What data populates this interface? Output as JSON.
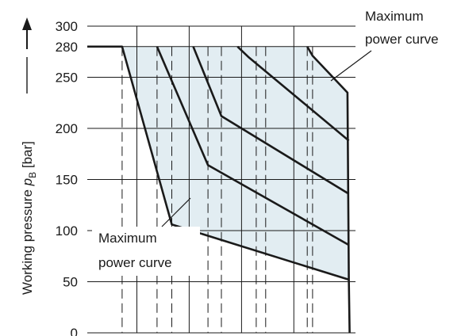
{
  "chart_data": {
    "type": "line",
    "ylabel_main": "Working pressure ",
    "ylabel_symbol": "p",
    "ylabel_subscript": "B",
    "ylabel_unit": " [bar]",
    "ylim": [
      0,
      300
    ],
    "yticks": [
      0,
      50,
      100,
      150,
      200,
      250,
      280,
      300
    ],
    "grid": true,
    "fill_color": "#e2edf2",
    "x_units_note": "x axis has no printed ticks; x values in flow-fraction units 0-10",
    "xlim": [
      0,
      10
    ],
    "vertical_grid_x": [
      1.85,
      3.8,
      5.75,
      7.7
    ],
    "dashed_x": [
      1.3,
      2.6,
      3.15,
      4.5,
      5.0,
      6.3,
      6.65,
      8.2,
      8.4
    ],
    "series": [
      {
        "points": [
          [
            0,
            280
          ],
          [
            1.3,
            280
          ],
          [
            3.15,
            106
          ],
          [
            9.75,
            52
          ]
        ]
      },
      {
        "points": [
          [
            2.6,
            280
          ],
          [
            4.5,
            164
          ],
          [
            9.75,
            86
          ]
        ]
      },
      {
        "points": [
          [
            3.95,
            280
          ],
          [
            5.0,
            212
          ],
          [
            9.75,
            136
          ]
        ]
      },
      {
        "points": [
          [
            5.6,
            280
          ],
          [
            6.0,
            270
          ],
          [
            9.75,
            188
          ]
        ]
      },
      {
        "points": [
          [
            8.2,
            280
          ],
          [
            8.4,
            271
          ],
          [
            9.7,
            235
          ],
          [
            9.75,
            52
          ],
          [
            9.78,
            0
          ]
        ]
      }
    ],
    "annotations": [
      {
        "lines": [
          "Maximum",
          "power curve"
        ],
        "position": "top-right"
      },
      {
        "lines": [
          "Maximum",
          "power curve"
        ],
        "position": "lower-middle"
      }
    ]
  }
}
